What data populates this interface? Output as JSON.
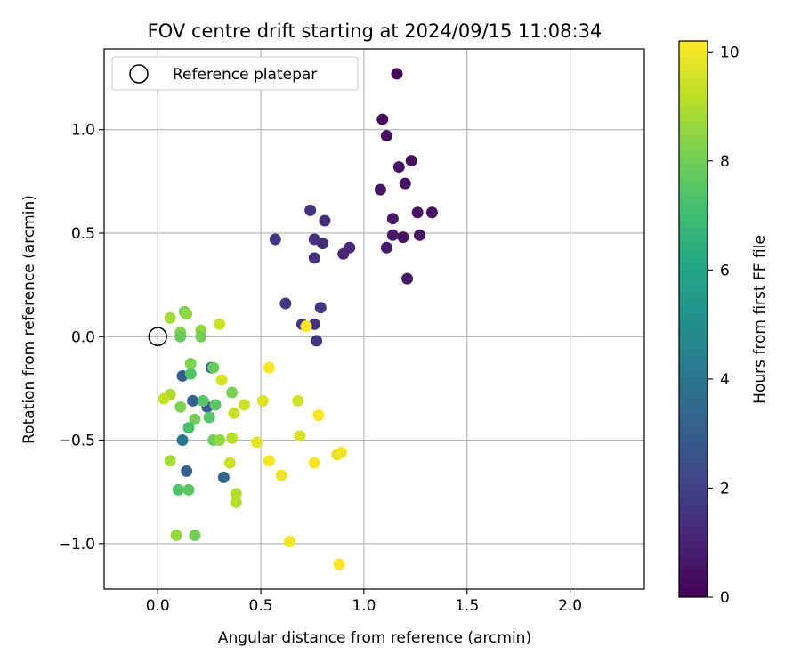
{
  "chart_data": {
    "type": "scatter",
    "title": "FOV centre drift starting at 2024/09/15 11:08:34",
    "xlabel": "Angular distance from reference (arcmin)",
    "ylabel": "Rotation from reference (arcmin)",
    "xlim": [
      -0.26,
      2.36
    ],
    "ylim": [
      -1.22,
      1.39
    ],
    "xticks": [
      0.0,
      0.5,
      1.0,
      1.5,
      2.0
    ],
    "xtick_labels": [
      "0.0",
      "0.5",
      "1.0",
      "1.5",
      "2.0"
    ],
    "yticks": [
      -1.0,
      -0.5,
      0.0,
      0.5,
      1.0
    ],
    "ytick_labels": [
      "−1.0",
      "−0.5",
      "0.0",
      "0.5",
      "1.0"
    ],
    "grid": true,
    "legend": {
      "placement": "top-left",
      "entries": [
        "Reference platepar"
      ]
    },
    "reference_point": {
      "name": "Reference platepar",
      "x": 0.0,
      "y": 0.0
    },
    "colorbar": {
      "label": "Hours from first FF file",
      "colormap": "viridis",
      "range": [
        0,
        10.2
      ],
      "ticks": [
        0,
        2,
        4,
        6,
        8,
        10
      ],
      "tick_labels": [
        "0",
        "2",
        "4",
        "6",
        "8",
        "10"
      ]
    },
    "points": [
      {
        "x": 1.16,
        "y": 1.27,
        "h": 0.1
      },
      {
        "x": 1.09,
        "y": 1.05,
        "h": 0.2
      },
      {
        "x": 1.11,
        "y": 0.97,
        "h": 0.3
      },
      {
        "x": 1.17,
        "y": 0.82,
        "h": 0.4
      },
      {
        "x": 1.23,
        "y": 0.85,
        "h": 0.3
      },
      {
        "x": 1.2,
        "y": 0.74,
        "h": 0.5
      },
      {
        "x": 1.08,
        "y": 0.71,
        "h": 0.6
      },
      {
        "x": 1.14,
        "y": 0.57,
        "h": 0.6
      },
      {
        "x": 1.26,
        "y": 0.6,
        "h": 0.4
      },
      {
        "x": 1.33,
        "y": 0.6,
        "h": 0.4
      },
      {
        "x": 1.14,
        "y": 0.49,
        "h": 0.6
      },
      {
        "x": 1.19,
        "y": 0.48,
        "h": 0.5
      },
      {
        "x": 1.27,
        "y": 0.49,
        "h": 0.5
      },
      {
        "x": 1.11,
        "y": 0.43,
        "h": 0.7
      },
      {
        "x": 1.21,
        "y": 0.28,
        "h": 0.7
      },
      {
        "x": 0.74,
        "y": 0.61,
        "h": 1.5
      },
      {
        "x": 0.81,
        "y": 0.56,
        "h": 1.3
      },
      {
        "x": 0.57,
        "y": 0.47,
        "h": 1.6
      },
      {
        "x": 0.76,
        "y": 0.47,
        "h": 1.5
      },
      {
        "x": 0.8,
        "y": 0.45,
        "h": 1.3
      },
      {
        "x": 0.93,
        "y": 0.43,
        "h": 1.1
      },
      {
        "x": 0.9,
        "y": 0.4,
        "h": 1.1
      },
      {
        "x": 0.76,
        "y": 0.38,
        "h": 1.5
      },
      {
        "x": 0.62,
        "y": 0.16,
        "h": 1.7
      },
      {
        "x": 0.79,
        "y": 0.14,
        "h": 1.6
      },
      {
        "x": 0.7,
        "y": 0.06,
        "h": 1.6
      },
      {
        "x": 0.76,
        "y": 0.06,
        "h": 1.5
      },
      {
        "x": 0.72,
        "y": 0.05,
        "h": 10.2
      },
      {
        "x": 0.77,
        "y": -0.02,
        "h": 1.6
      },
      {
        "x": 0.26,
        "y": -0.15,
        "h": 3.0
      },
      {
        "x": 0.12,
        "y": -0.19,
        "h": 3.0
      },
      {
        "x": 0.17,
        "y": -0.31,
        "h": 3.2
      },
      {
        "x": 0.24,
        "y": -0.34,
        "h": 2.9
      },
      {
        "x": 0.12,
        "y": -0.5,
        "h": 4.0
      },
      {
        "x": 0.14,
        "y": -0.65,
        "h": 3.1
      },
      {
        "x": 0.32,
        "y": -0.68,
        "h": 3.4
      },
      {
        "x": 0.06,
        "y": 0.09,
        "h": 8.8
      },
      {
        "x": 0.13,
        "y": 0.12,
        "h": 8.0
      },
      {
        "x": 0.14,
        "y": 0.11,
        "h": 8.5
      },
      {
        "x": 0.11,
        "y": 0.02,
        "h": 8.3
      },
      {
        "x": 0.11,
        "y": 0.0,
        "h": 7.8
      },
      {
        "x": 0.21,
        "y": 0.03,
        "h": 8.6
      },
      {
        "x": 0.21,
        "y": 0.0,
        "h": 8.0
      },
      {
        "x": 0.3,
        "y": 0.06,
        "h": 9.4
      },
      {
        "x": 0.16,
        "y": -0.13,
        "h": 8.2
      },
      {
        "x": 0.16,
        "y": -0.18,
        "h": 7.4
      },
      {
        "x": 0.27,
        "y": -0.15,
        "h": 7.8
      },
      {
        "x": 0.06,
        "y": -0.28,
        "h": 8.9
      },
      {
        "x": 0.03,
        "y": -0.3,
        "h": 9.3
      },
      {
        "x": 0.11,
        "y": -0.34,
        "h": 8.2
      },
      {
        "x": 0.22,
        "y": -0.31,
        "h": 7.5
      },
      {
        "x": 0.28,
        "y": -0.33,
        "h": 7.6
      },
      {
        "x": 0.31,
        "y": -0.21,
        "h": 9.6
      },
      {
        "x": 0.36,
        "y": -0.27,
        "h": 8.1
      },
      {
        "x": 0.42,
        "y": -0.33,
        "h": 9.4
      },
      {
        "x": 0.37,
        "y": -0.37,
        "h": 9.4
      },
      {
        "x": 0.18,
        "y": -0.4,
        "h": 8.0
      },
      {
        "x": 0.25,
        "y": -0.39,
        "h": 7.5
      },
      {
        "x": 0.15,
        "y": -0.44,
        "h": 7.2
      },
      {
        "x": 0.27,
        "y": -0.5,
        "h": 7.9
      },
      {
        "x": 0.3,
        "y": -0.5,
        "h": 8.5
      },
      {
        "x": 0.36,
        "y": -0.49,
        "h": 9.1
      },
      {
        "x": 0.06,
        "y": -0.6,
        "h": 8.8
      },
      {
        "x": 0.35,
        "y": -0.61,
        "h": 9.4
      },
      {
        "x": 0.1,
        "y": -0.74,
        "h": 7.4
      },
      {
        "x": 0.15,
        "y": -0.74,
        "h": 7.6
      },
      {
        "x": 0.38,
        "y": -0.76,
        "h": 9.0
      },
      {
        "x": 0.38,
        "y": -0.8,
        "h": 9.0
      },
      {
        "x": 0.09,
        "y": -0.96,
        "h": 8.6
      },
      {
        "x": 0.18,
        "y": -0.96,
        "h": 8.0
      },
      {
        "x": 0.54,
        "y": -0.15,
        "h": 10.1
      },
      {
        "x": 0.51,
        "y": -0.31,
        "h": 9.7
      },
      {
        "x": 0.68,
        "y": -0.31,
        "h": 9.5
      },
      {
        "x": 0.78,
        "y": -0.38,
        "h": 10.2
      },
      {
        "x": 0.48,
        "y": -0.51,
        "h": 9.8
      },
      {
        "x": 0.69,
        "y": -0.48,
        "h": 9.6
      },
      {
        "x": 0.54,
        "y": -0.6,
        "h": 10.1
      },
      {
        "x": 0.6,
        "y": -0.67,
        "h": 9.9
      },
      {
        "x": 0.76,
        "y": -0.61,
        "h": 10.1
      },
      {
        "x": 0.87,
        "y": -0.57,
        "h": 9.8
      },
      {
        "x": 0.89,
        "y": -0.56,
        "h": 10.0
      },
      {
        "x": 0.64,
        "y": -0.99,
        "h": 10.0
      },
      {
        "x": 0.88,
        "y": -1.1,
        "h": 10.2
      }
    ]
  }
}
